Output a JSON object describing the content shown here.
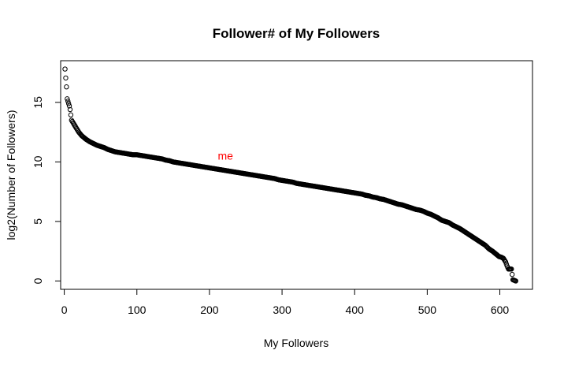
{
  "chart_data": {
    "type": "scatter",
    "title": "Follower# of My Followers",
    "xlabel": "My Followers",
    "ylabel": "log2(Number of Followers)",
    "xlim": [
      -5,
      645
    ],
    "ylim": [
      -0.7,
      18.5
    ],
    "xticks": [
      0,
      100,
      200,
      300,
      400,
      500,
      600
    ],
    "yticks": [
      0,
      5,
      10,
      15
    ],
    "grid": false,
    "legend": "none",
    "marker": "open-circle",
    "point_color": "#000000",
    "annotation": {
      "text": "me",
      "x": 222,
      "y": 10.2,
      "color": "#ff0000"
    },
    "series": [
      {
        "x": [
          1,
          3,
          4,
          6,
          7,
          8,
          10,
          12,
          14,
          16,
          18,
          20,
          22,
          24,
          26,
          28,
          30,
          35,
          40,
          45,
          50,
          55,
          60,
          65,
          70,
          75,
          80,
          85,
          90,
          95,
          100,
          105,
          110,
          115,
          120,
          125,
          130,
          135,
          140,
          145,
          150,
          155,
          160,
          165,
          170,
          175,
          180,
          185,
          190,
          195,
          200,
          205,
          210,
          215,
          220,
          225,
          230,
          235,
          240,
          245,
          250,
          255,
          260,
          265,
          270,
          275,
          280,
          285,
          290,
          295,
          300,
          305,
          310,
          315,
          320,
          325,
          330,
          335,
          340,
          345,
          350,
          355,
          360,
          365,
          370,
          375,
          380,
          385,
          390,
          395,
          400,
          405,
          410,
          415,
          420,
          425,
          430,
          435,
          440,
          445,
          450,
          455,
          460,
          465,
          470,
          475,
          480,
          485,
          490,
          495,
          500,
          505,
          510,
          515,
          520,
          525,
          530,
          535,
          540,
          545,
          550,
          555,
          560,
          565,
          570,
          575,
          580,
          585,
          590,
          593,
          596,
          599,
          602,
          605,
          608,
          610,
          612,
          614,
          616,
          618,
          620,
          622
        ],
        "y": [
          17.8,
          16.3,
          15.3,
          14.9,
          14.7,
          14.4,
          13.5,
          13.3,
          13.1,
          12.9,
          12.7,
          12.5,
          12.35,
          12.2,
          12.1,
          12.0,
          11.9,
          11.7,
          11.55,
          11.4,
          11.3,
          11.2,
          11.05,
          10.95,
          10.85,
          10.8,
          10.75,
          10.7,
          10.65,
          10.6,
          10.6,
          10.55,
          10.5,
          10.45,
          10.4,
          10.35,
          10.3,
          10.25,
          10.15,
          10.1,
          10.0,
          9.95,
          9.9,
          9.85,
          9.8,
          9.75,
          9.7,
          9.65,
          9.6,
          9.55,
          9.5,
          9.45,
          9.4,
          9.35,
          9.3,
          9.25,
          9.2,
          9.15,
          9.1,
          9.05,
          9.0,
          8.95,
          8.9,
          8.85,
          8.8,
          8.75,
          8.7,
          8.65,
          8.6,
          8.5,
          8.45,
          8.4,
          8.35,
          8.3,
          8.2,
          8.15,
          8.1,
          8.05,
          8.0,
          7.95,
          7.9,
          7.85,
          7.8,
          7.75,
          7.7,
          7.65,
          7.6,
          7.55,
          7.5,
          7.45,
          7.4,
          7.35,
          7.3,
          7.2,
          7.15,
          7.05,
          7.0,
          6.9,
          6.85,
          6.75,
          6.65,
          6.55,
          6.45,
          6.4,
          6.3,
          6.2,
          6.1,
          6.0,
          5.95,
          5.85,
          5.7,
          5.6,
          5.45,
          5.3,
          5.1,
          5.0,
          4.9,
          4.7,
          4.55,
          4.4,
          4.2,
          4.0,
          3.8,
          3.6,
          3.4,
          3.2,
          3.0,
          2.7,
          2.5,
          2.35,
          2.2,
          2.05,
          2.0,
          1.9,
          1.6,
          1.25,
          1.0,
          1.0,
          1.0,
          0.1,
          0.05,
          0.0
        ]
      }
    ]
  }
}
